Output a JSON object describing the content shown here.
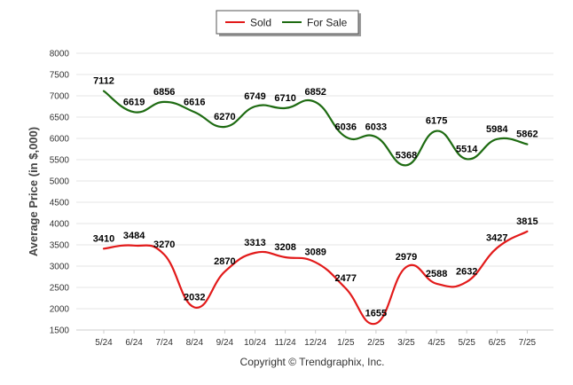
{
  "chart_data": {
    "type": "line",
    "categories": [
      "5/24",
      "6/24",
      "7/24",
      "8/24",
      "9/24",
      "10/24",
      "11/24",
      "12/24",
      "1/25",
      "2/25",
      "3/25",
      "4/25",
      "5/25",
      "6/25",
      "7/25"
    ],
    "series": [
      {
        "name": "Sold",
        "color": "#e21a1a",
        "values": [
          3410,
          3484,
          3270,
          2032,
          2870,
          3313,
          3208,
          3089,
          2477,
          1655,
          2979,
          2588,
          2632,
          3427,
          3815
        ]
      },
      {
        "name": "For Sale",
        "color": "#1e6b12",
        "values": [
          7112,
          6619,
          6856,
          6616,
          6270,
          6749,
          6710,
          6852,
          6036,
          6033,
          5368,
          6175,
          5514,
          5984,
          5862
        ]
      }
    ],
    "ylabel": "Average Price (in $,000)",
    "ylim": [
      1500,
      8000
    ],
    "yticks": [
      1500,
      2000,
      2500,
      3000,
      3500,
      4000,
      4500,
      5000,
      5500,
      6000,
      6500,
      7000,
      7500,
      8000
    ],
    "grid": true,
    "legend": "top-center"
  },
  "footer": {
    "copyright": "Copyright © Trendgraphix, Inc."
  }
}
